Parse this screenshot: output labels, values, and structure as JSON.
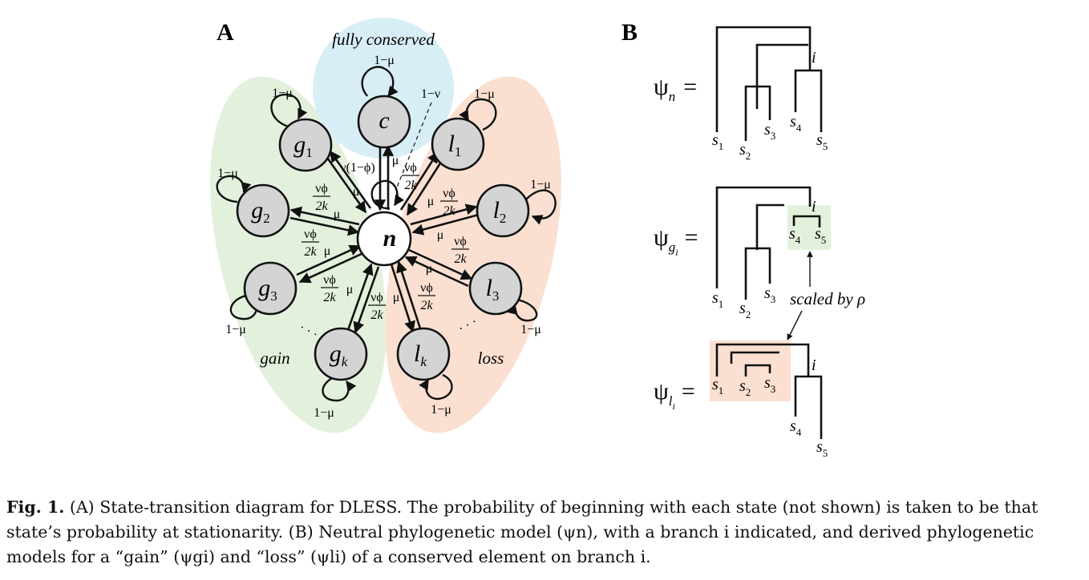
{
  "panel_a": {
    "letter": "A",
    "regions": {
      "conserved": "fully conserved",
      "gain": "gain",
      "loss": "loss"
    },
    "colors": {
      "conserved": "#d8eef6",
      "gain": "#e3f1dc",
      "loss": "#fbe0d1",
      "node": "#d4d4d4"
    },
    "states": {
      "n": "n",
      "c": "c",
      "g": "g",
      "l": "l",
      "sub1": "1",
      "sub2": "2",
      "sub3": "3",
      "subk": "k"
    },
    "labels": {
      "self": "1−μ",
      "c_self": "1−μ",
      "one_minus_nu": "1−ν",
      "nu_one_minus_phi": "ν(1−ϕ)",
      "mu": "μ",
      "nu_phi": "νϕ",
      "two_k": "2k",
      "dots": "· · ·"
    }
  },
  "panel_b": {
    "letter": "B",
    "psi": "ψ",
    "sub_n": "n",
    "sub_g": "g",
    "sub_l": "l",
    "sub_i": "i",
    "equals": "=",
    "branch": "i",
    "species": {
      "s": "s",
      "i1": "1",
      "i2": "2",
      "i3": "3",
      "i4": "4",
      "i5": "5"
    },
    "annotation": "scaled by ρ",
    "colors": {
      "gain_box": "#e3f1dc",
      "loss_box": "#fbe0d1"
    }
  },
  "caption": {
    "label": "Fig. 1.",
    "text": " (A) State-transition diagram for DLESS. The probability of beginning with each state (not shown) is taken to be that state’s probability at stationarity. (B) Neutral phylogenetic model (ψn), with a branch i indicated, and derived phylogenetic models for a “gain” (ψgi) and “loss” (ψli) of a conserved element on branch i."
  }
}
